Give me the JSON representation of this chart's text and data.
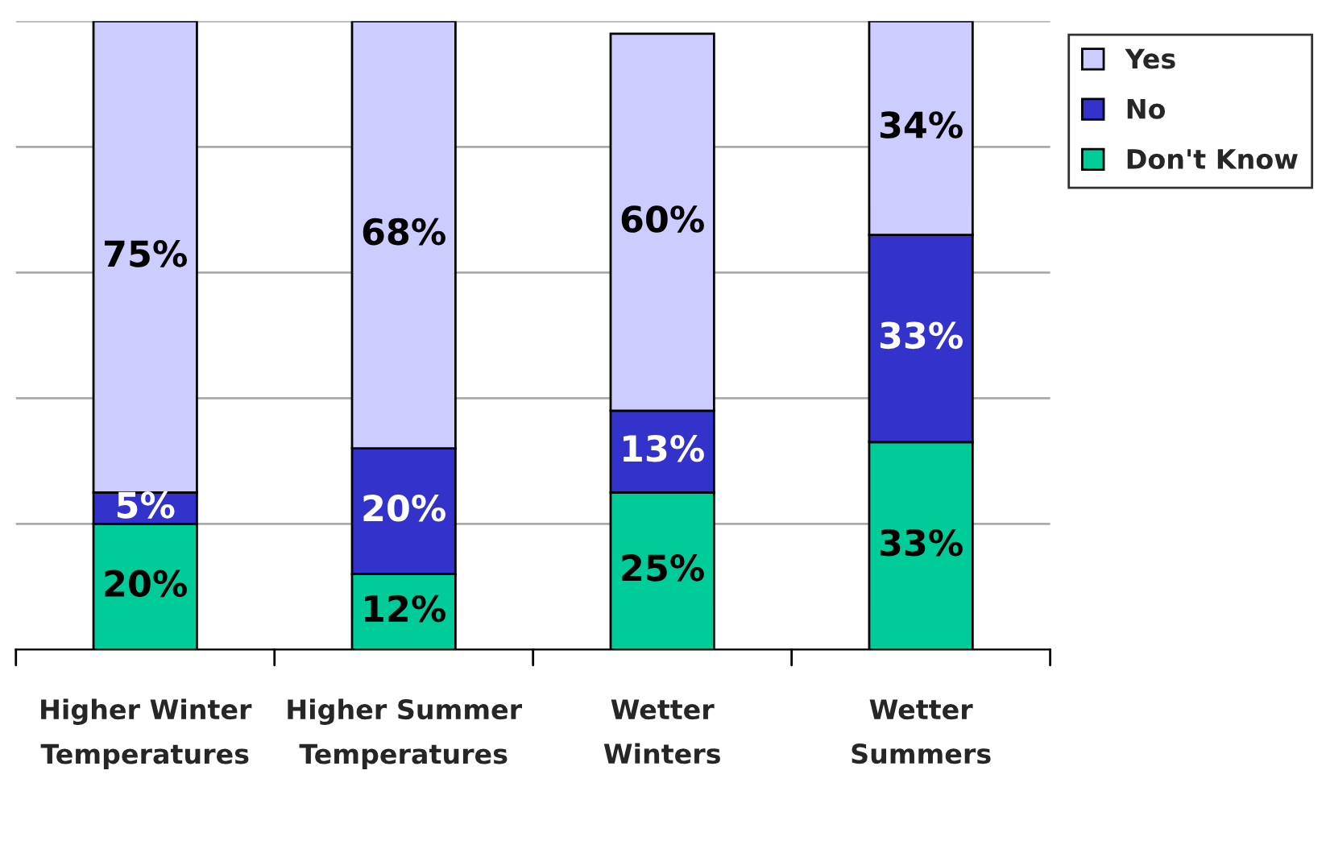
{
  "chart_data": {
    "type": "bar",
    "stacked": true,
    "categories": [
      "Higher Winter Temperatures",
      "Higher Summer Temperatures",
      "Wetter Winters",
      "Wetter Summers"
    ],
    "series": [
      {
        "name": "Don't Know",
        "color": "#00cc99",
        "values": [
          20,
          12,
          25,
          33
        ],
        "value_labels": [
          "20%",
          "12%",
          "25%",
          "33%"
        ]
      },
      {
        "name": "No",
        "color": "#3333cc",
        "values": [
          5,
          20,
          13,
          33
        ],
        "value_labels": [
          "5%",
          "20%",
          "13%",
          "33%"
        ]
      },
      {
        "name": "Yes",
        "color": "#ccccff",
        "values": [
          75,
          68,
          60,
          34
        ],
        "value_labels": [
          "75%",
          "68%",
          "60%",
          "34%"
        ]
      }
    ],
    "tick_labels": "x",
    "grid": "y",
    "legend": "top right"
  }
}
